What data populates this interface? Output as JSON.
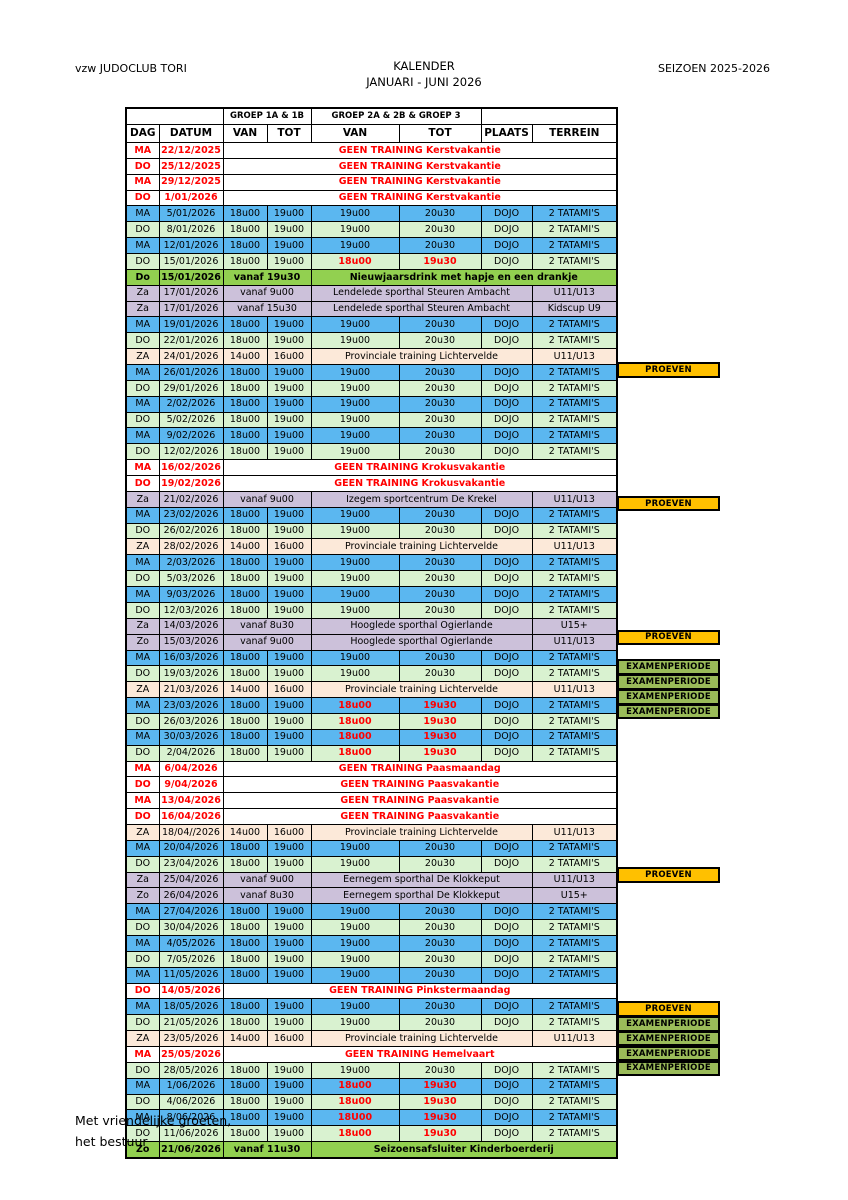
{
  "page": {
    "club": "vzw JUDOCLUB TORI",
    "title": "KALENDER",
    "subtitle": "JANUARI - JUNI 2026",
    "season": "SEIZOEN 2025-2026",
    "closing": [
      "Met vriendelijke groeten,",
      "het bestuur"
    ]
  },
  "colors": {
    "row-blue": "#5BB7F0",
    "row-green": "#D9F2D0",
    "row-event": "#92D050",
    "row-loc": "#CCC1DA",
    "row-prov": "#FCE9D9",
    "badge-proeven": "#FFC000",
    "badge-examen": "#9ABB59",
    "red": "#FF0000"
  },
  "table": {
    "group_headers": [
      "",
      "GROEP 1A & 1B",
      "GROEP 2A & 2B & GROEP 3",
      ""
    ],
    "columns": [
      "DAG",
      "DATUM",
      "VAN",
      "TOT",
      "VAN",
      "TOT",
      "PLAATS",
      "TERREIN"
    ],
    "rows": [
      {
        "ty": "nt",
        "d": "MA",
        "dt": "22/12/2025",
        "msg": "GEEN TRAINING Kerstvakantie"
      },
      {
        "ty": "nt",
        "d": "DO",
        "dt": "25/12/2025",
        "msg": "GEEN TRAINING Kerstvakantie"
      },
      {
        "ty": "nt",
        "d": "MA",
        "dt": "29/12/2025",
        "msg": "GEEN TRAINING Kerstvakantie"
      },
      {
        "ty": "nt",
        "d": "DO",
        "dt": "1/01/2026",
        "msg": "GEEN TRAINING Kerstvakantie"
      },
      {
        "ty": "t",
        "c": "b",
        "d": "MA",
        "dt": "5/01/2026",
        "v1": "18u00",
        "t1": "19u00",
        "v2": "19u00",
        "t2": "20u30",
        "pl": "DOJO",
        "tr": "2 TATAMI'S"
      },
      {
        "ty": "t",
        "c": "g",
        "d": "DO",
        "dt": "8/01/2026",
        "v1": "18u00",
        "t1": "19u00",
        "v2": "19u00",
        "t2": "20u30",
        "pl": "DOJO",
        "tr": "2 TATAMI'S"
      },
      {
        "ty": "t",
        "c": "b",
        "d": "MA",
        "dt": "12/01/2026",
        "v1": "18u00",
        "t1": "19u00",
        "v2": "19u00",
        "t2": "20u30",
        "pl": "DOJO",
        "tr": "2 TATAMI'S"
      },
      {
        "ty": "t",
        "c": "g",
        "d": "DO",
        "dt": "15/01/2026",
        "v1": "18u00",
        "t1": "19u00",
        "v2": "18u00",
        "t2": "19u30",
        "pl": "DOJO",
        "tr": "2 TATAMI'S",
        "r": true
      },
      {
        "ty": "ev2",
        "d": "Do",
        "dt": "15/01/2026",
        "tm": "vanaf 19u30",
        "tx": "Nieuwjaarsdrink met hapje en een drankje"
      },
      {
        "ty": "loc",
        "d": "Za",
        "dt": "17/01/2026",
        "tm": "vanaf 9u00",
        "pl": "Lendelede sporthal Steuren Ambacht",
        "cat": "U11/U13"
      },
      {
        "ty": "loc",
        "d": "Za",
        "dt": "17/01/2026",
        "tm": "vanaf 15u30",
        "pl": "Lendelede sporthal Steuren Ambacht",
        "cat": "Kidscup U9"
      },
      {
        "ty": "t",
        "c": "b",
        "d": "MA",
        "dt": "19/01/2026",
        "v1": "18u00",
        "t1": "19u00",
        "v2": "19u00",
        "t2": "20u30",
        "pl": "DOJO",
        "tr": "2 TATAMI'S"
      },
      {
        "ty": "t",
        "c": "g",
        "d": "DO",
        "dt": "22/01/2026",
        "v1": "18u00",
        "t1": "19u00",
        "v2": "19u00",
        "t2": "20u30",
        "pl": "DOJO",
        "tr": "2 TATAMI'S"
      },
      {
        "ty": "prov",
        "d": "ZA",
        "dt": "24/01/2026",
        "v1": "14u00",
        "t1": "16u00",
        "pl": "Provinciale training Lichtervelde",
        "cat": "U11/U13"
      },
      {
        "ty": "t",
        "c": "b",
        "d": "MA",
        "dt": "26/01/2026",
        "v1": "18u00",
        "t1": "19u00",
        "v2": "19u00",
        "t2": "20u30",
        "pl": "DOJO",
        "tr": "2 TATAMI'S"
      },
      {
        "ty": "t",
        "c": "g",
        "d": "DO",
        "dt": "29/01/2026",
        "v1": "18u00",
        "t1": "19u00",
        "v2": "19u00",
        "t2": "20u30",
        "pl": "DOJO",
        "tr": "2 TATAMI'S",
        "bd": "PROEVEN"
      },
      {
        "ty": "t",
        "c": "b",
        "d": "MA",
        "dt": "2/02/2026",
        "v1": "18u00",
        "t1": "19u00",
        "v2": "19u00",
        "t2": "20u30",
        "pl": "DOJO",
        "tr": "2 TATAMI'S"
      },
      {
        "ty": "t",
        "c": "g",
        "d": "DO",
        "dt": "5/02/2026",
        "v1": "18u00",
        "t1": "19u00",
        "v2": "19u00",
        "t2": "20u30",
        "pl": "DOJO",
        "tr": "2 TATAMI'S"
      },
      {
        "ty": "t",
        "c": "b",
        "d": "MA",
        "dt": "9/02/2026",
        "v1": "18u00",
        "t1": "19u00",
        "v2": "19u00",
        "t2": "20u30",
        "pl": "DOJO",
        "tr": "2 TATAMI'S"
      },
      {
        "ty": "t",
        "c": "g",
        "d": "DO",
        "dt": "12/02/2026",
        "v1": "18u00",
        "t1": "19u00",
        "v2": "19u00",
        "t2": "20u30",
        "pl": "DOJO",
        "tr": "2 TATAMI'S"
      },
      {
        "ty": "nt",
        "d": "MA",
        "dt": "16/02/2026",
        "msg": "GEEN TRAINING Krokusvakantie"
      },
      {
        "ty": "nt",
        "d": "DO",
        "dt": "19/02/2026",
        "msg": "GEEN TRAINING Krokusvakantie"
      },
      {
        "ty": "loc",
        "d": "Za",
        "dt": "21/02/2026",
        "tm": "vanaf 9u00",
        "pl": "Izegem sportcentrum De Krekel",
        "cat": "U11/U13"
      },
      {
        "ty": "t",
        "c": "b",
        "d": "MA",
        "dt": "23/02/2026",
        "v1": "18u00",
        "t1": "19u00",
        "v2": "19u00",
        "t2": "20u30",
        "pl": "DOJO",
        "tr": "2 TATAMI'S"
      },
      {
        "ty": "t",
        "c": "g",
        "d": "DO",
        "dt": "26/02/2026",
        "v1": "18u00",
        "t1": "19u00",
        "v2": "19u00",
        "t2": "20u30",
        "pl": "DOJO",
        "tr": "2 TATAMI'S",
        "bd": "PROEVEN"
      },
      {
        "ty": "prov",
        "d": "ZA",
        "dt": "28/02/2026",
        "v1": "14u00",
        "t1": "16u00",
        "pl": "Provinciale training Lichtervelde",
        "cat": "U11/U13"
      },
      {
        "ty": "t",
        "c": "b",
        "d": "MA",
        "dt": "2/03/2026",
        "v1": "18u00",
        "t1": "19u00",
        "v2": "19u00",
        "t2": "20u30",
        "pl": "DOJO",
        "tr": "2 TATAMI'S"
      },
      {
        "ty": "t",
        "c": "g",
        "d": "DO",
        "dt": "5/03/2026",
        "v1": "18u00",
        "t1": "19u00",
        "v2": "19u00",
        "t2": "20u30",
        "pl": "DOJO",
        "tr": "2 TATAMI'S"
      },
      {
        "ty": "t",
        "c": "b",
        "d": "MA",
        "dt": "9/03/2026",
        "v1": "18u00",
        "t1": "19u00",
        "v2": "19u00",
        "t2": "20u30",
        "pl": "DOJO",
        "tr": "2 TATAMI'S"
      },
      {
        "ty": "t",
        "c": "g",
        "d": "DO",
        "dt": "12/03/2026",
        "v1": "18u00",
        "t1": "19u00",
        "v2": "19u00",
        "t2": "20u30",
        "pl": "DOJO",
        "tr": "2 TATAMI'S"
      },
      {
        "ty": "loc",
        "d": "Za",
        "dt": "14/03/2026",
        "tm": "vanaf 8u30",
        "pl": "Hooglede sporthal Ogierlande",
        "cat": "U15+"
      },
      {
        "ty": "loc",
        "d": "Zo",
        "dt": "15/03/2026",
        "tm": "vanaf 9u00",
        "pl": "Hooglede sporthal Ogierlande",
        "cat": "U11/U13"
      },
      {
        "ty": "t",
        "c": "b",
        "d": "MA",
        "dt": "16/03/2026",
        "v1": "18u00",
        "t1": "19u00",
        "v2": "19u00",
        "t2": "20u30",
        "pl": "DOJO",
        "tr": "2 TATAMI'S"
      },
      {
        "ty": "t",
        "c": "g",
        "d": "DO",
        "dt": "19/03/2026",
        "v1": "18u00",
        "t1": "19u00",
        "v2": "19u00",
        "t2": "20u30",
        "pl": "DOJO",
        "tr": "2 TATAMI'S",
        "bd": "PROEVEN"
      },
      {
        "ty": "prov",
        "d": "ZA",
        "dt": "21/03/2026",
        "v1": "14u00",
        "t1": "16u00",
        "pl": "Provinciale training Lichtervelde",
        "cat": "U11/U13"
      },
      {
        "ty": "t",
        "c": "b",
        "d": "MA",
        "dt": "23/03/2026",
        "v1": "18u00",
        "t1": "19u00",
        "v2": "18u00",
        "t2": "19u30",
        "pl": "DOJO",
        "tr": "2 TATAMI'S",
        "r": true,
        "bd": "EXAMENPERIODE"
      },
      {
        "ty": "t",
        "c": "g",
        "d": "DO",
        "dt": "26/03/2026",
        "v1": "18u00",
        "t1": "19u00",
        "v2": "18u00",
        "t2": "19u30",
        "pl": "DOJO",
        "tr": "2 TATAMI'S",
        "r": true,
        "bd": "EXAMENPERIODE"
      },
      {
        "ty": "t",
        "c": "b",
        "d": "MA",
        "dt": "30/03/2026",
        "v1": "18u00",
        "t1": "19u00",
        "v2": "18u00",
        "t2": "19u30",
        "pl": "DOJO",
        "tr": "2 TATAMI'S",
        "r": true,
        "bd": "EXAMENPERIODE"
      },
      {
        "ty": "t",
        "c": "g",
        "d": "DO",
        "dt": "2/04/2026",
        "v1": "18u00",
        "t1": "19u00",
        "v2": "18u00",
        "t2": "19u30",
        "pl": "DOJO",
        "tr": "2 TATAMI'S",
        "r": true,
        "bd": "EXAMENPERIODE"
      },
      {
        "ty": "nt",
        "d": "MA",
        "dt": "6/04/2026",
        "msg": "GEEN TRAINING Paasmaandag"
      },
      {
        "ty": "nt",
        "d": "DO",
        "dt": "9/04/2026",
        "msg": "GEEN TRAINING Paasvakantie"
      },
      {
        "ty": "nt",
        "d": "MA",
        "dt": "13/04/2026",
        "msg": "GEEN TRAINING Paasvakantie"
      },
      {
        "ty": "nt",
        "d": "DO",
        "dt": "16/04/2026",
        "msg": "GEEN TRAINING Paasvakantie"
      },
      {
        "ty": "prov",
        "d": "ZA",
        "dt": "18/04//2026",
        "v1": "14u00",
        "t1": "16u00",
        "pl": "Provinciale training Lichtervelde",
        "cat": "U11/U13"
      },
      {
        "ty": "t",
        "c": "b",
        "d": "MA",
        "dt": "20/04/2026",
        "v1": "18u00",
        "t1": "19u00",
        "v2": "19u00",
        "t2": "20u30",
        "pl": "DOJO",
        "tr": "2 TATAMI'S"
      },
      {
        "ty": "t",
        "c": "g",
        "d": "DO",
        "dt": "23/04/2026",
        "v1": "18u00",
        "t1": "19u00",
        "v2": "19u00",
        "t2": "20u30",
        "pl": "DOJO",
        "tr": "2 TATAMI'S"
      },
      {
        "ty": "loc",
        "d": "Za",
        "dt": "25/04/2026",
        "tm": "vanaf 9u00",
        "pl": "Eernegem sporthal De Klokkeput",
        "cat": "U11/U13"
      },
      {
        "ty": "loc",
        "d": "Zo",
        "dt": "26/04/2026",
        "tm": "vanaf 8u30",
        "pl": "Eernegem sporthal De Klokkeput",
        "cat": "U15+"
      },
      {
        "ty": "t",
        "c": "b",
        "d": "MA",
        "dt": "27/04/2026",
        "v1": "18u00",
        "t1": "19u00",
        "v2": "19u00",
        "t2": "20u30",
        "pl": "DOJO",
        "tr": "2 TATAMI'S"
      },
      {
        "ty": "t",
        "c": "g",
        "d": "DO",
        "dt": "30/04/2026",
        "v1": "18u00",
        "t1": "19u00",
        "v2": "19u00",
        "t2": "20u30",
        "pl": "DOJO",
        "tr": "2 TATAMI'S",
        "bd": "PROEVEN"
      },
      {
        "ty": "t",
        "c": "b",
        "d": "MA",
        "dt": "4/05/2026",
        "v1": "18u00",
        "t1": "19u00",
        "v2": "19u00",
        "t2": "20u30",
        "pl": "DOJO",
        "tr": "2 TATAMI'S"
      },
      {
        "ty": "t",
        "c": "g",
        "d": "DO",
        "dt": "7/05/2026",
        "v1": "18u00",
        "t1": "19u00",
        "v2": "19u00",
        "t2": "20u30",
        "pl": "DOJO",
        "tr": "2 TATAMI'S"
      },
      {
        "ty": "t",
        "c": "b",
        "d": "MA",
        "dt": "11/05/2026",
        "v1": "18u00",
        "t1": "19u00",
        "v2": "19u00",
        "t2": "20u30",
        "pl": "DOJO",
        "tr": "2 TATAMI'S"
      },
      {
        "ty": "nt",
        "d": "DO",
        "dt": "14/05/2026",
        "msg": "GEEN TRAINING Pinkstermaandag"
      },
      {
        "ty": "t",
        "c": "b",
        "d": "MA",
        "dt": "18/05/2026",
        "v1": "18u00",
        "t1": "19u00",
        "v2": "19u00",
        "t2": "20u30",
        "pl": "DOJO",
        "tr": "2 TATAMI'S"
      },
      {
        "ty": "t",
        "c": "g",
        "d": "DO",
        "dt": "21/05/2026",
        "v1": "18u00",
        "t1": "19u00",
        "v2": "19u00",
        "t2": "20u30",
        "pl": "DOJO",
        "tr": "2 TATAMI'S"
      },
      {
        "ty": "prov",
        "d": "ZA",
        "dt": "23/05/2026",
        "v1": "14u00",
        "t1": "16u00",
        "pl": "Provinciale training Lichtervelde",
        "cat": "U11/U13"
      },
      {
        "ty": "nt",
        "d": "MA",
        "dt": "25/05/2026",
        "msg": "GEEN TRAINING Hemelvaart"
      },
      {
        "ty": "t",
        "c": "g",
        "d": "DO",
        "dt": "28/05/2026",
        "v1": "18u00",
        "t1": "19u00",
        "v2": "19u00",
        "t2": "20u30",
        "pl": "DOJO",
        "tr": "2 TATAMI'S",
        "bd": "PROEVEN"
      },
      {
        "ty": "t",
        "c": "b",
        "d": "MA",
        "dt": "1/06/2026",
        "v1": "18u00",
        "t1": "19u00",
        "v2": "18u00",
        "t2": "19u30",
        "pl": "DOJO",
        "tr": "2 TATAMI'S",
        "r": true,
        "bd": "EXAMENPERIODE"
      },
      {
        "ty": "t",
        "c": "g",
        "d": "DO",
        "dt": "4/06/2026",
        "v1": "18u00",
        "t1": "19u00",
        "v2": "18u00",
        "t2": "19u30",
        "pl": "DOJO",
        "tr": "2 TATAMI'S",
        "r": true,
        "bd": "EXAMENPERIODE"
      },
      {
        "ty": "t",
        "c": "b",
        "d": "MA",
        "dt": "8/06/2026",
        "v1": "18u00",
        "t1": "19u00",
        "v2": "18U00",
        "t2": "19u30",
        "pl": "DOJO",
        "tr": "2 TATAMI'S",
        "r": true,
        "bd": "EXAMENPERIODE"
      },
      {
        "ty": "t",
        "c": "g",
        "d": "DO",
        "dt": "11/06/2026",
        "v1": "18u00",
        "t1": "19u00",
        "v2": "18u00",
        "t2": "19u30",
        "pl": "DOJO",
        "tr": "2 TATAMI'S",
        "r": true,
        "bd": "EXAMENPERIODE"
      },
      {
        "ty": "ev2",
        "d": "Zo",
        "dt": "21/06/2026",
        "tm": "vanaf 11u30",
        "tx": "Seizoensafsluiter Kinderboerderij"
      }
    ]
  }
}
